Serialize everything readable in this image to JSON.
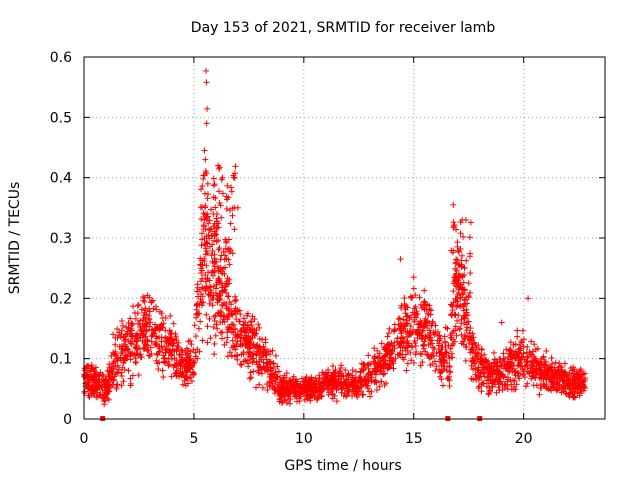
{
  "chart_data": {
    "type": "scatter",
    "title": "Day 153 of 2021, SRMTID for receiver lamb",
    "xlabel": "GPS time / hours",
    "ylabel": "SRMTID / TECUs",
    "xlim": [
      0,
      23.7
    ],
    "ylim": [
      0,
      0.6
    ],
    "grid": true,
    "x_ticks": [
      0,
      5,
      10,
      15,
      20
    ],
    "y_ticks": [
      0,
      0.1,
      0.2,
      0.3,
      0.4,
      0.5,
      0.6
    ],
    "y_tick_labels": [
      "0",
      "0.1",
      "0.2",
      "0.3",
      "0.4",
      "0.5",
      "0.6"
    ],
    "marker": "+",
    "color": "#ff0000",
    "series": [
      {
        "name": "SRMTID",
        "envelope": {
          "x": [
            0,
            0.5,
            1.0,
            1.5,
            2.0,
            2.5,
            3.0,
            3.5,
            4.0,
            4.5,
            5.0,
            5.2,
            5.5,
            5.8,
            6.2,
            6.6,
            7.0,
            7.5,
            8.0,
            8.5,
            9.0,
            9.5,
            10,
            10.5,
            11,
            11.5,
            12,
            12.5,
            13,
            13.5,
            14,
            14.5,
            15,
            15.5,
            16,
            16.3,
            16.6,
            16.9,
            17.2,
            17.5,
            17.8,
            18.2,
            18.6,
            19,
            19.5,
            20,
            20.5,
            21,
            21.5,
            22,
            22.5,
            22.8
          ],
          "center": [
            0.07,
            0.06,
            0.05,
            0.1,
            0.12,
            0.14,
            0.15,
            0.13,
            0.11,
            0.09,
            0.09,
            0.2,
            0.28,
            0.24,
            0.2,
            0.16,
            0.15,
            0.13,
            0.11,
            0.08,
            0.05,
            0.05,
            0.05,
            0.05,
            0.06,
            0.06,
            0.06,
            0.06,
            0.07,
            0.09,
            0.12,
            0.14,
            0.16,
            0.15,
            0.12,
            0.1,
            0.1,
            0.2,
            0.18,
            0.14,
            0.1,
            0.08,
            0.07,
            0.08,
            0.09,
            0.1,
            0.09,
            0.08,
            0.07,
            0.06,
            0.06,
            0.06
          ],
          "spread": [
            0.03,
            0.03,
            0.03,
            0.06,
            0.07,
            0.07,
            0.07,
            0.06,
            0.05,
            0.04,
            0.04,
            0.1,
            0.16,
            0.12,
            0.1,
            0.07,
            0.07,
            0.06,
            0.05,
            0.04,
            0.025,
            0.02,
            0.02,
            0.02,
            0.025,
            0.03,
            0.03,
            0.03,
            0.035,
            0.04,
            0.05,
            0.06,
            0.07,
            0.06,
            0.05,
            0.05,
            0.05,
            0.1,
            0.1,
            0.06,
            0.05,
            0.035,
            0.035,
            0.04,
            0.05,
            0.05,
            0.04,
            0.035,
            0.03,
            0.03,
            0.03,
            0.02
          ]
        },
        "peaks": [
          {
            "x": 5.55,
            "y": 0.577
          },
          {
            "x": 5.57,
            "y": 0.558
          },
          {
            "x": 5.6,
            "y": 0.514
          },
          {
            "x": 5.58,
            "y": 0.49
          },
          {
            "x": 5.48,
            "y": 0.445
          },
          {
            "x": 5.52,
            "y": 0.43
          },
          {
            "x": 6.1,
            "y": 0.42
          },
          {
            "x": 6.3,
            "y": 0.4
          },
          {
            "x": 7.0,
            "y": 0.35
          },
          {
            "x": 14.4,
            "y": 0.265
          },
          {
            "x": 16.8,
            "y": 0.355
          },
          {
            "x": 17.2,
            "y": 0.33
          },
          {
            "x": 15.0,
            "y": 0.235
          },
          {
            "x": 20.2,
            "y": 0.2
          },
          {
            "x": 19.0,
            "y": 0.16
          }
        ]
      }
    ],
    "zero_markers_x": [
      0.85,
      16.55,
      18.0
    ],
    "point_count": 2700
  }
}
